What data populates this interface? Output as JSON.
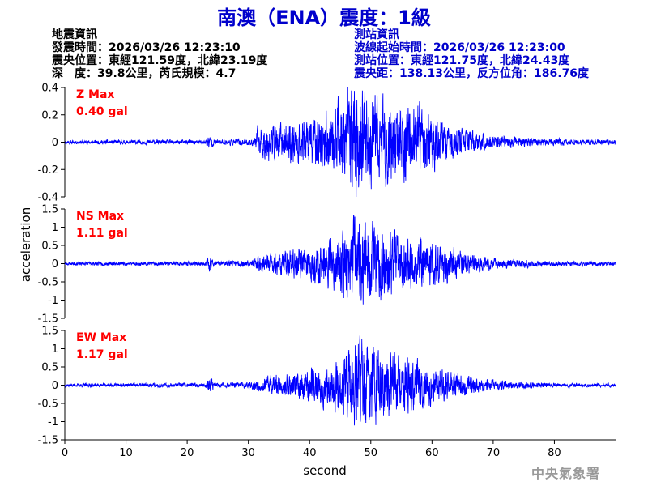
{
  "title": "南澳（ENA）震度：1級",
  "earthquake_info": {
    "heading": "地震資訊",
    "origin_time": "發震時間：2026/03/26 12:23:10",
    "epicenter": "震央位置：東經121.59度，北緯23.19度",
    "depth_magnitude": "深　度：39.8公里，芮氏規模：4.7"
  },
  "station_info": {
    "heading": "測站資訊",
    "wave_start": "波線起始時間：2026/03/26 12:23:00",
    "station_location": "測站位置：東經121.75度，北緯24.43度",
    "distance": "震央距：138.13公里，反方位角：186.76度"
  },
  "footer": "中央氣象署",
  "colors": {
    "title": "#0000cc",
    "trace": "#0000ff",
    "max_label": "#ff0000",
    "axis": "#000000",
    "footer": "#999999"
  },
  "chart_data": {
    "type": "line",
    "xlabel": "second",
    "ylabel": "acceleration",
    "xlim": [
      0,
      90
    ],
    "xticks": [
      0,
      10,
      20,
      30,
      40,
      50,
      60,
      70,
      80
    ],
    "grid": false,
    "panels": [
      {
        "component": "Z",
        "max_label": "Z Max",
        "max_value": "0.40 gal",
        "ylim": [
          -0.4,
          0.4
        ],
        "yticks": [
          0.4,
          0.2,
          0,
          -0.2,
          -0.4
        ],
        "ytick_labels": [
          "0.4",
          "0.2",
          "0",
          "-0.2",
          "-0.4"
        ],
        "envelope": {
          "t": [
            0,
            20,
            23,
            23.6,
            24.5,
            31,
            31.6,
            38,
            44,
            47.5,
            50,
            54,
            58,
            62,
            66,
            70,
            75,
            80,
            90
          ],
          "amp": [
            0.012,
            0.015,
            0.015,
            0.05,
            0.015,
            0.025,
            0.1,
            0.14,
            0.2,
            0.38,
            0.3,
            0.26,
            0.22,
            0.13,
            0.07,
            0.04,
            0.03,
            0.02,
            0.015
          ]
        },
        "seed": 11
      },
      {
        "component": "NS",
        "max_label": "NS Max",
        "max_value": "1.11 gal",
        "ylim": [
          -1.5,
          1.5
        ],
        "yticks": [
          1.5,
          1,
          0.5,
          0,
          -0.5,
          -1,
          -1.5
        ],
        "ytick_labels": [
          "1.5",
          "1",
          "0.5",
          "0",
          "-0.5",
          "-1",
          "-1.5"
        ],
        "envelope": {
          "t": [
            0,
            20,
            23,
            23.6,
            24.5,
            30,
            33,
            38,
            44,
            47.5,
            50,
            54,
            58,
            62,
            66,
            70,
            75,
            80,
            90
          ],
          "amp": [
            0.04,
            0.05,
            0.05,
            0.18,
            0.05,
            0.08,
            0.25,
            0.35,
            0.6,
            1.08,
            0.9,
            0.75,
            0.6,
            0.45,
            0.25,
            0.13,
            0.09,
            0.06,
            0.05
          ]
        },
        "seed": 23
      },
      {
        "component": "EW",
        "max_label": "EW Max",
        "max_value": "1.17 gal",
        "ylim": [
          -1.5,
          1.5
        ],
        "yticks": [
          1.5,
          1,
          0.5,
          0,
          -0.5,
          -1,
          -1.5
        ],
        "ytick_labels": [
          "1.5",
          "1",
          "0.5",
          "0",
          "-0.5",
          "-1",
          "-1.5"
        ],
        "envelope": {
          "t": [
            0,
            20,
            23,
            23.6,
            24.5,
            30,
            33,
            38,
            44,
            47.5,
            50,
            54,
            58,
            62,
            66,
            70,
            75,
            80,
            90
          ],
          "amp": [
            0.04,
            0.05,
            0.05,
            0.25,
            0.05,
            0.08,
            0.22,
            0.33,
            0.55,
            1.15,
            1.0,
            0.8,
            0.55,
            0.4,
            0.22,
            0.12,
            0.08,
            0.05,
            0.04
          ]
        },
        "seed": 37
      }
    ]
  }
}
